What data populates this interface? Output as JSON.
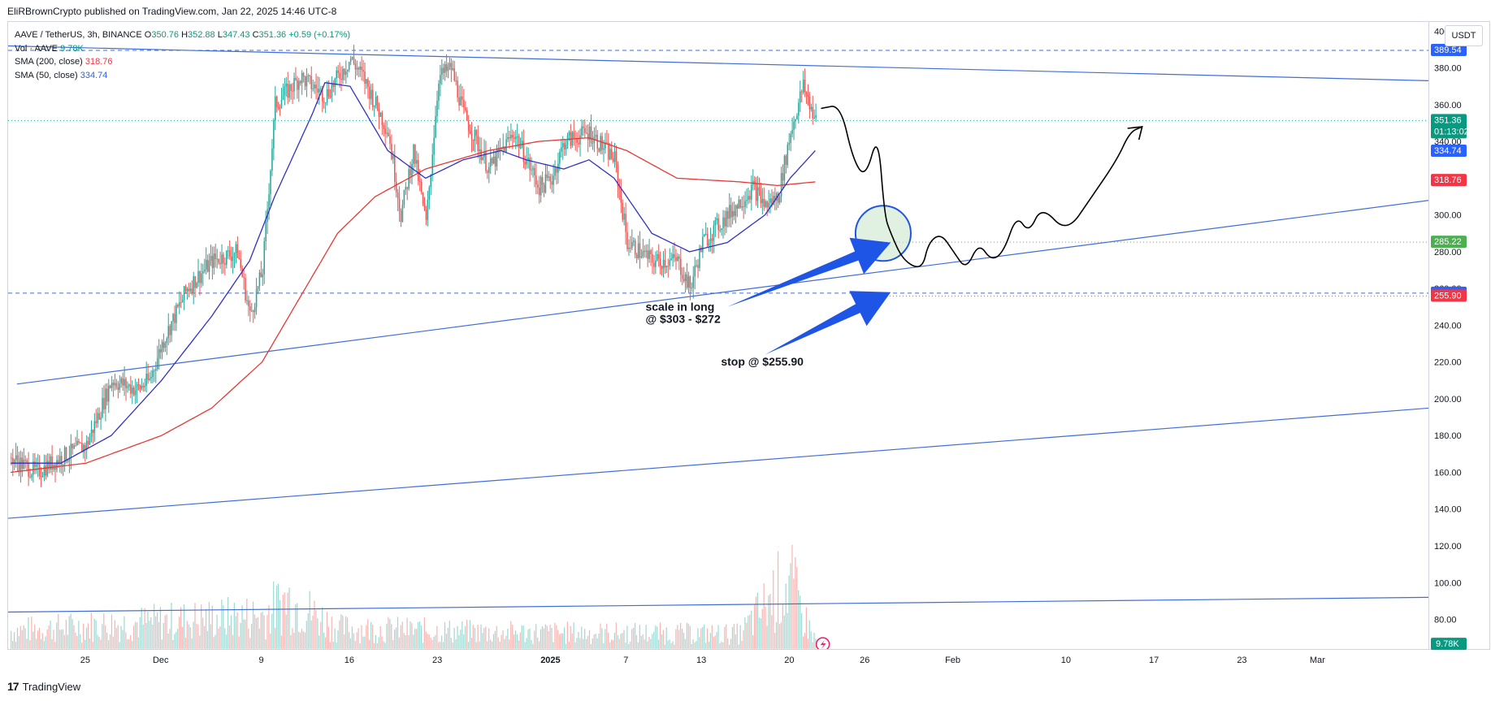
{
  "header": {
    "published": "EliRBrownCrypto published on TradingView.com, Jan 22, 2025 14:46 UTC-8"
  },
  "legend": {
    "symbol": "AAVE / TetherUS, 3h, BINANCE",
    "o_label": "O",
    "o_value": "350.76",
    "h_label": "H",
    "h_value": "352.88",
    "l_label": "L",
    "l_value": "347.43",
    "c_label": "C",
    "c_value": "351.36",
    "change": "+0.59 (+0.17%)",
    "vol_label": "Vol · AAVE",
    "vol_value": "9.78K",
    "sma200_label": "SMA (200, close)",
    "sma200_value": "318.76",
    "sma50_label": "SMA (50, close)",
    "sma50_value": "334.74"
  },
  "currency": "USDT",
  "footer": {
    "logo": "17",
    "brand": "TradingView"
  },
  "colors": {
    "up": "#26a69a",
    "down": "#ef5350",
    "sma200": "#e53935",
    "sma50": "#3030c8",
    "trendline": "#3f6ed8",
    "arrow": "#1f55e6",
    "label_blue": "#2962ff",
    "label_red": "#f23645",
    "label_green": "#4caf50",
    "label_teal": "#089981"
  },
  "chart_data": {
    "type": "candlestick",
    "symbol": "AAVE / TetherUS",
    "timeframe": "3h",
    "exchange": "BINANCE",
    "y_ticks": [
      80,
      100,
      120,
      140,
      160,
      180,
      200,
      220,
      240,
      260,
      280,
      300,
      320,
      340,
      360,
      380,
      400
    ],
    "ylim": [
      63,
      405
    ],
    "x_ticks": [
      {
        "day": 8,
        "label": "25"
      },
      {
        "day": 14,
        "label": "Dec"
      },
      {
        "day": 22,
        "label": "9"
      },
      {
        "day": 29,
        "label": "16"
      },
      {
        "day": 36,
        "label": "23"
      },
      {
        "day": 45,
        "label": "2025"
      },
      {
        "day": 51,
        "label": "7"
      },
      {
        "day": 57,
        "label": "13"
      },
      {
        "day": 64,
        "label": "20"
      },
      {
        "day": 70,
        "label": "26"
      },
      {
        "day": 77,
        "label": "Feb"
      },
      {
        "day": 86,
        "label": "10"
      },
      {
        "day": 93,
        "label": "17"
      },
      {
        "day": 100,
        "label": "23"
      },
      {
        "day": 106,
        "label": "Mar"
      }
    ],
    "xlim": [
      1.8,
      114.9
    ],
    "price_keypoints": [
      [
        2,
        168
      ],
      [
        4,
        160
      ],
      [
        6,
        168
      ],
      [
        8,
        175
      ],
      [
        10,
        210
      ],
      [
        12,
        205
      ],
      [
        13,
        210
      ],
      [
        14,
        230
      ],
      [
        16,
        260
      ],
      [
        18,
        275
      ],
      [
        20,
        280
      ],
      [
        21,
        245
      ],
      [
        22,
        270
      ],
      [
        23,
        360
      ],
      [
        25,
        375
      ],
      [
        27,
        365
      ],
      [
        29,
        385
      ],
      [
        30,
        375
      ],
      [
        32,
        345
      ],
      [
        33,
        300
      ],
      [
        34,
        335
      ],
      [
        35,
        295
      ],
      [
        36,
        375
      ],
      [
        37,
        380
      ],
      [
        38,
        355
      ],
      [
        40,
        325
      ],
      [
        42,
        345
      ],
      [
        44,
        315
      ],
      [
        45,
        320
      ],
      [
        46,
        340
      ],
      [
        48,
        345
      ],
      [
        50,
        330
      ],
      [
        51,
        285
      ],
      [
        53,
        275
      ],
      [
        55,
        275
      ],
      [
        56,
        260
      ],
      [
        57,
        285
      ],
      [
        59,
        300
      ],
      [
        61,
        315
      ],
      [
        62,
        305
      ],
      [
        63,
        310
      ],
      [
        64,
        345
      ],
      [
        65,
        370
      ],
      [
        66,
        351
      ]
    ],
    "sma50_keypoints": [
      [
        2,
        165
      ],
      [
        6,
        165
      ],
      [
        10,
        180
      ],
      [
        14,
        210
      ],
      [
        18,
        245
      ],
      [
        21,
        275
      ],
      [
        23,
        310
      ],
      [
        26,
        355
      ],
      [
        27,
        372
      ],
      [
        29,
        370
      ],
      [
        32,
        335
      ],
      [
        35,
        320
      ],
      [
        38,
        330
      ],
      [
        41,
        335
      ],
      [
        43,
        330
      ],
      [
        46,
        325
      ],
      [
        48,
        330
      ],
      [
        50,
        320
      ],
      [
        53,
        290
      ],
      [
        56,
        280
      ],
      [
        59,
        285
      ],
      [
        62,
        300
      ],
      [
        64,
        320
      ],
      [
        66,
        335
      ]
    ],
    "sma200_keypoints": [
      [
        2,
        160
      ],
      [
        8,
        165
      ],
      [
        14,
        180
      ],
      [
        18,
        195
      ],
      [
        22,
        220
      ],
      [
        25,
        255
      ],
      [
        28,
        290
      ],
      [
        31,
        310
      ],
      [
        35,
        325
      ],
      [
        40,
        335
      ],
      [
        44,
        340
      ],
      [
        48,
        342
      ],
      [
        51,
        335
      ],
      [
        55,
        320
      ],
      [
        60,
        318
      ],
      [
        63,
        316
      ],
      [
        66,
        318
      ]
    ],
    "volume_keypoints": [
      [
        2,
        22
      ],
      [
        22,
        40
      ],
      [
        24,
        60
      ],
      [
        28,
        25
      ],
      [
        40,
        20
      ],
      [
        60,
        18
      ],
      [
        63,
        70
      ],
      [
        64,
        80
      ],
      [
        65,
        40
      ],
      [
        66,
        10
      ]
    ],
    "trendlines": [
      [
        [
          1.5,
          392
        ],
        [
          114.9,
          373
        ]
      ],
      [
        [
          2.5,
          208
        ],
        [
          114.9,
          308
        ]
      ],
      [
        [
          1.8,
          135
        ],
        [
          114.9,
          195
        ]
      ],
      [
        [
          1.8,
          84
        ],
        [
          114.9,
          92
        ]
      ]
    ],
    "horizontal_dashed": [
      389.54,
      257.45
    ],
    "horizontal_dotted": [
      351.36,
      285.22
    ],
    "price_labels": [
      {
        "value": 389.54,
        "text": "389.54",
        "color": "#2962ff"
      },
      {
        "value": 351.36,
        "text": "351.36",
        "subtext": "01:13:02",
        "color": "#089981"
      },
      {
        "value": 334.74,
        "text": "334.74",
        "color": "#2962ff"
      },
      {
        "value": 318.76,
        "text": "318.76",
        "color": "#f23645"
      },
      {
        "value": 285.22,
        "text": "285.22",
        "color": "#4caf50"
      },
      {
        "value": 257.45,
        "text": "257.45",
        "color": "#2962ff"
      },
      {
        "value": 255.9,
        "text": "255.90",
        "color": "#f23645"
      }
    ],
    "volume_label": "9.78K",
    "annotations": [
      {
        "text_lines": [
          "scale in long",
          "@ $303 - $272"
        ],
        "day": 52.5,
        "value": 248
      },
      {
        "text_lines": [
          "stop @ $255.90"
        ],
        "day": 58.5,
        "value": 218
      }
    ],
    "arrows": [
      {
        "from": [
          59,
          250
        ],
        "to": [
          72,
          285
        ]
      },
      {
        "from": [
          62,
          224
        ],
        "to": [
          72,
          258
        ]
      }
    ],
    "circle": {
      "center": [
        71.4,
        290
      ],
      "radius_days": 2.2
    },
    "projection_path": [
      [
        66.5,
        358
      ],
      [
        68,
        360
      ],
      [
        69,
        330
      ],
      [
        70,
        320
      ],
      [
        71,
        345
      ],
      [
        71.5,
        300
      ],
      [
        72,
        290
      ],
      [
        73,
        275
      ],
      [
        74.5,
        270
      ],
      [
        75,
        285
      ],
      [
        76,
        290
      ],
      [
        77,
        280
      ],
      [
        78,
        270
      ],
      [
        79,
        285
      ],
      [
        80,
        275
      ],
      [
        81,
        280
      ],
      [
        82,
        300
      ],
      [
        83,
        290
      ],
      [
        84,
        305
      ],
      [
        86,
        290
      ],
      [
        88,
        310
      ],
      [
        90,
        330
      ],
      [
        91,
        345
      ],
      [
        92,
        348
      ]
    ]
  }
}
